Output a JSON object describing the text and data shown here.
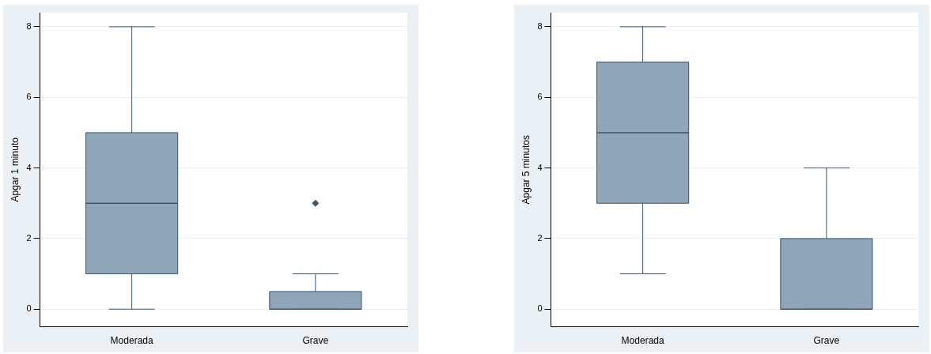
{
  "chart_data": [
    {
      "type": "box",
      "ylabel": "Apgar 1 minuto",
      "categories": [
        "Moderada",
        "Grave"
      ],
      "color": "#8fa5b8",
      "ylim": [
        -0.5,
        8.4
      ],
      "yticks": [
        0,
        2,
        4,
        6,
        8
      ],
      "grid": "y",
      "boxes": [
        {
          "low": 0,
          "q1": 1,
          "median": 3,
          "q3": 5,
          "high": 8
        },
        {
          "low": 0,
          "q1": 0,
          "median": 0,
          "q3": 0.5,
          "high": 1,
          "outliers": [
            3
          ]
        }
      ]
    },
    {
      "type": "box",
      "ylabel": "Apgar 5 minutos",
      "categories": [
        "Moderada",
        "Grave"
      ],
      "color": "#8fa5b8",
      "ylim": [
        -0.5,
        8.4
      ],
      "yticks": [
        0,
        2,
        4,
        6,
        8
      ],
      "grid": "y",
      "boxes": [
        {
          "low": 1,
          "q1": 3,
          "median": 5,
          "q3": 7,
          "high": 8
        },
        {
          "low": 0,
          "q1": 0,
          "median": 0,
          "q3": 2,
          "high": 4
        }
      ]
    }
  ]
}
